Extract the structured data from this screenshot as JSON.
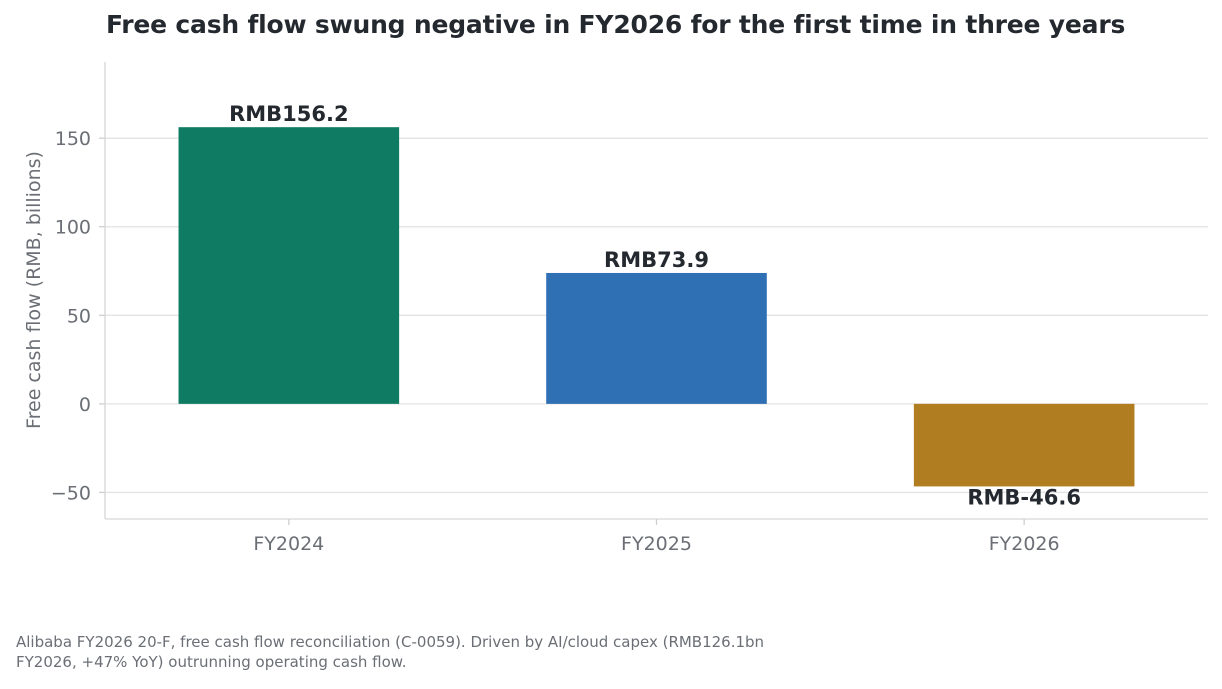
{
  "chart_data": {
    "type": "bar",
    "title": "Free cash flow swung negative in FY2026 for the first time in three years",
    "ylabel": "Free cash flow (RMB, billions)",
    "xlabel": "",
    "categories": [
      "FY2024",
      "FY2025",
      "FY2026"
    ],
    "values": [
      156.2,
      73.9,
      -46.6
    ],
    "data_labels": [
      "RMB156.2",
      "RMB73.9",
      "RMB-46.6"
    ],
    "colors": [
      "#0f7b63",
      "#2f6fb3",
      "#b07d20"
    ],
    "ylim": [
      -65,
      193
    ],
    "yticks": [
      -50,
      0,
      50,
      100,
      150
    ],
    "ytick_labels": [
      "−50",
      "0",
      "50",
      "100",
      "150"
    ],
    "grid": true
  },
  "footnote": "Alibaba FY2026 20-F, free cash flow reconciliation (C-0059). Driven by AI/cloud capex (RMB126.1bn FY2026, +47% YoY) outrunning operating cash flow."
}
